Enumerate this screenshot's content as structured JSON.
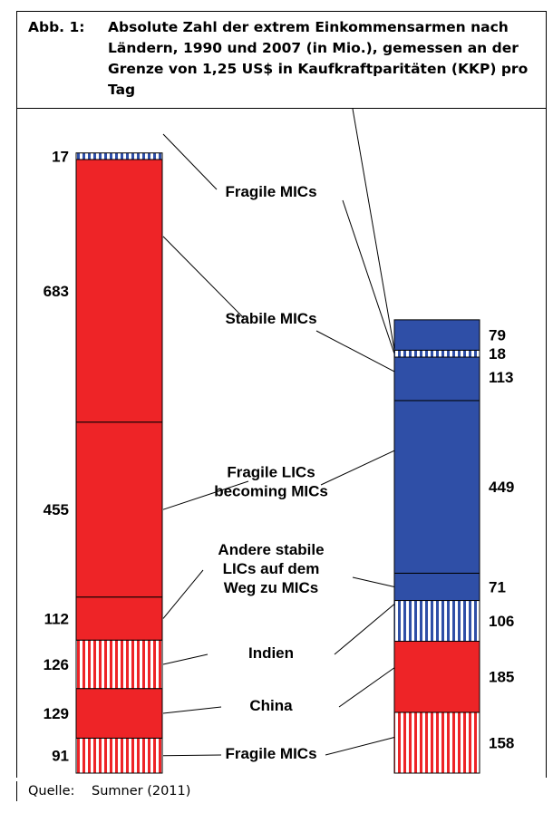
{
  "figure": {
    "prefix": "Abb. 1:",
    "title": "Absolute Zahl der extrem Einkommensarmen nach Ländern, 1990 und 2007 (in Mio.), gemessen an der Grenze von 1,25 US$ in Kaufkraftparitäten (KKP) pro Tag",
    "source_label": "Quelle:",
    "source_value": "Sumner (2011)"
  },
  "colors": {
    "red": "#ee2427",
    "blue": "#2f4fa7",
    "white": "#ffffff",
    "line": "#000000"
  },
  "chart_data": {
    "type": "bar",
    "stacked": true,
    "columns": [
      "1990",
      "2007"
    ],
    "column_labels_printed": false,
    "unit": "Mio.",
    "segments_1990": [
      {
        "category": "Fragile MICs",
        "value": 91,
        "fill": "red-striped"
      },
      {
        "category": "Stabile MICs",
        "value": 129,
        "fill": "red"
      },
      {
        "category": "Fragile LICs becoming MICs",
        "value": 126,
        "fill": "red-striped"
      },
      {
        "category": "Andere stabile LICs auf dem Weg zu MICs",
        "value": 112,
        "fill": "red"
      },
      {
        "category": "Indien",
        "value": 455,
        "fill": "red"
      },
      {
        "category": "China",
        "value": 683,
        "fill": "red"
      },
      {
        "category": "Fragile MICs",
        "value": 17,
        "fill": "blue-striped"
      }
    ],
    "segments_2007": [
      {
        "category": "Fragile MICs",
        "value": 158,
        "fill": "red-striped"
      },
      {
        "category": "Stabile MICs",
        "value": 185,
        "fill": "red"
      },
      {
        "category": "Fragile LICs becoming MICs",
        "value": 106,
        "fill": "blue-striped"
      },
      {
        "category": "Andere stabile LICs auf dem Weg zu MICs",
        "value": 71,
        "fill": "blue"
      },
      {
        "category": "Indien",
        "value": 449,
        "fill": "blue"
      },
      {
        "category": "China",
        "value": 113,
        "fill": "blue"
      },
      {
        "category": "Fragile MICs",
        "value": 18,
        "fill": "blue-striped"
      },
      {
        "category": "",
        "value": 79,
        "fill": "blue"
      }
    ],
    "center_labels": [
      "Fragile MICs",
      "China",
      "Indien",
      "Andere stabile\nLICs auf dem\nWeg zu MICs",
      "Fragile LICs\nbecoming MICs",
      "Stabile MICs",
      "Fragile MICs"
    ]
  }
}
